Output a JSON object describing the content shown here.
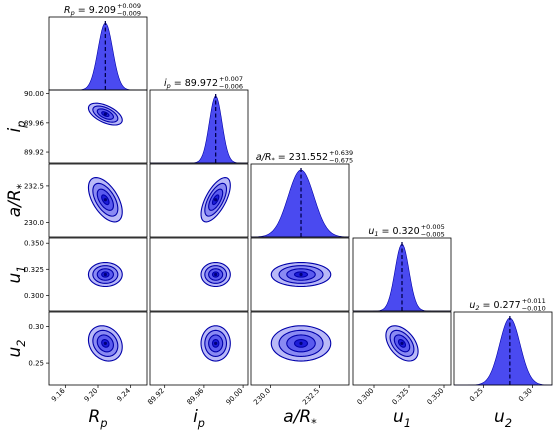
{
  "chart_data": {
    "type": "corner",
    "parameters": [
      {
        "key": "Rp",
        "label": "R_p",
        "median": 9.209,
        "plus": 0.009,
        "minus": 0.009,
        "title": {
          "text": "R_p = 9.209",
          "sup": "+0.009",
          "sub": "−0.009"
        },
        "ticks": [
          9.16,
          9.2,
          9.24
        ],
        "tick_labels": [
          "9.16",
          "9.20",
          "9.24"
        ],
        "range": [
          9.14,
          9.26
        ],
        "sigma": 0.009
      },
      {
        "key": "ip",
        "label": "i_p",
        "median": 89.972,
        "plus": 0.007,
        "minus": 0.006,
        "title": {
          "text": "i_p = 89.972",
          "sup": "+0.007",
          "sub": "−0.006"
        },
        "ticks": [
          89.92,
          89.96,
          90.0
        ],
        "tick_labels": [
          "89.92",
          "89.96",
          "90.00"
        ],
        "range": [
          89.905,
          90.005
        ],
        "sigma": 0.0065
      },
      {
        "key": "aR",
        "label": "a/R_*",
        "median": 231.552,
        "plus": 0.639,
        "minus": 0.675,
        "title": {
          "text": "a/R_* = 231.552",
          "sup": "+0.639",
          "sub": "−0.675"
        },
        "ticks": [
          230.0,
          232.5
        ],
        "tick_labels": [
          "230.0",
          "232.5"
        ],
        "range": [
          229.0,
          234.0
        ],
        "sigma": 0.66
      },
      {
        "key": "u1",
        "label": "u_1",
        "median": 0.32,
        "plus": 0.005,
        "minus": 0.005,
        "title": {
          "text": "u_1 = 0.320",
          "sup": "+0.005",
          "sub": "−0.005"
        },
        "ticks": [
          0.3,
          0.325,
          0.35
        ],
        "tick_labels": [
          "0.300",
          "0.325",
          "0.350"
        ],
        "range": [
          0.285,
          0.355
        ],
        "sigma": 0.005
      },
      {
        "key": "u2",
        "label": "u_2",
        "median": 0.277,
        "plus": 0.011,
        "minus": 0.01,
        "title": {
          "text": "u_2 = 0.277",
          "sup": "+0.011",
          "sub": "−0.010"
        },
        "ticks": [
          0.25,
          0.3
        ],
        "tick_labels": [
          "0.25",
          "0.30"
        ],
        "range": [
          0.22,
          0.32
        ],
        "sigma": 0.0105
      }
    ],
    "correlations": [
      {
        "pair": [
          "ip",
          "Rp"
        ],
        "rho": -0.55
      },
      {
        "pair": [
          "aR",
          "Rp"
        ],
        "rho": -0.55
      },
      {
        "pair": [
          "aR",
          "ip"
        ],
        "rho": 0.65
      },
      {
        "pair": [
          "u1",
          "Rp"
        ],
        "rho": 0.0
      },
      {
        "pair": [
          "u1",
          "ip"
        ],
        "rho": 0.0
      },
      {
        "pair": [
          "u1",
          "aR"
        ],
        "rho": 0.0
      },
      {
        "pair": [
          "u2",
          "Rp"
        ],
        "rho": -0.2
      },
      {
        "pair": [
          "u2",
          "ip"
        ],
        "rho": 0.0
      },
      {
        "pair": [
          "u2",
          "aR"
        ],
        "rho": 0.0
      },
      {
        "pair": [
          "u2",
          "u1"
        ],
        "rho": -0.45
      }
    ],
    "colors": {
      "fill": "#4a4af0",
      "line": "#0000aa",
      "median_line": "#00004d",
      "frame": "#000000"
    }
  }
}
